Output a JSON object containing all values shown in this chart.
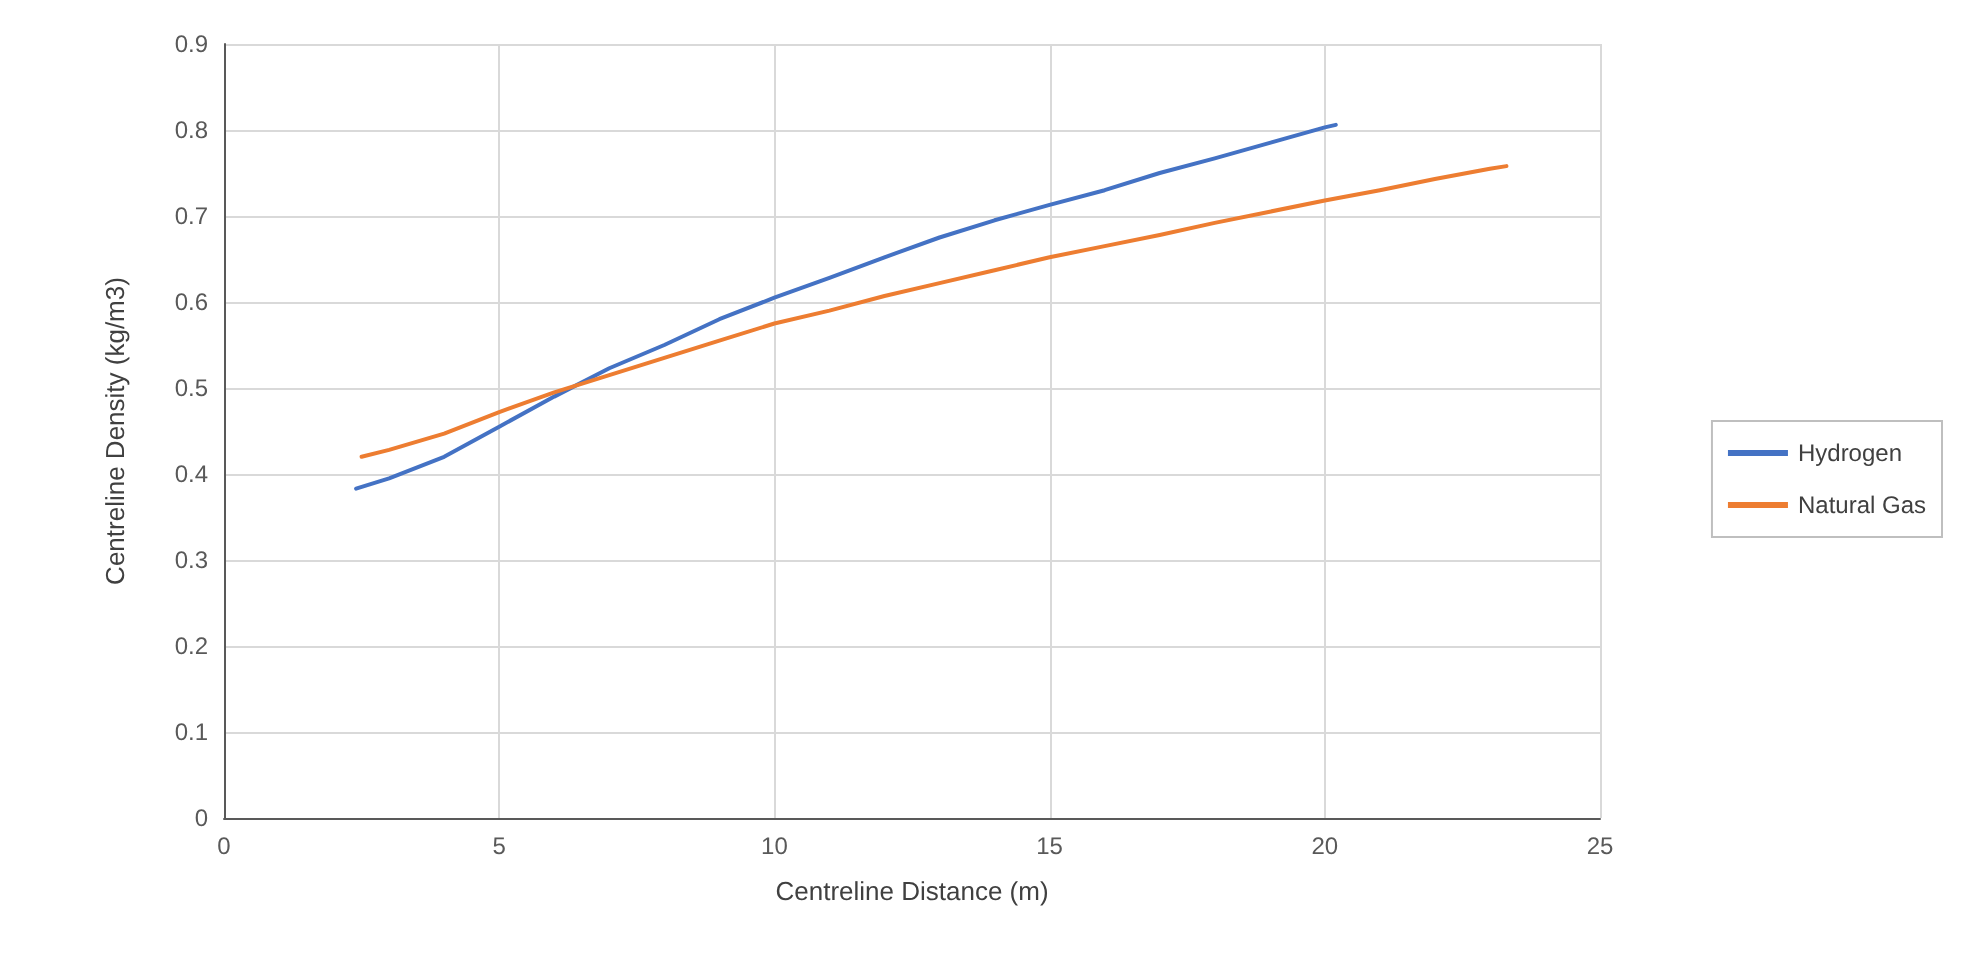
{
  "chart_data": {
    "type": "line",
    "xlabel": "Centreline Distance (m)",
    "ylabel": "Centreline Density (kg/m3)",
    "series": [
      {
        "name": "Hydrogen",
        "color": "#4472c4",
        "x": [
          2.4,
          3,
          4,
          5,
          6,
          7,
          8,
          9,
          10,
          11,
          12,
          13,
          14,
          15,
          16,
          17,
          18,
          19,
          20,
          20.2
        ],
        "values": [
          0.383,
          0.395,
          0.42,
          0.455,
          0.49,
          0.523,
          0.55,
          0.58,
          0.605,
          0.628,
          0.652,
          0.675,
          0.695,
          0.713,
          0.73,
          0.75,
          0.767,
          0.785,
          0.803,
          0.806
        ]
      },
      {
        "name": "Natural Gas",
        "color": "#ed7d31",
        "x": [
          2.5,
          3,
          4,
          5,
          6,
          7,
          8,
          9,
          10,
          11,
          12,
          13,
          14,
          15,
          16,
          17,
          18,
          19,
          20,
          21,
          22,
          23,
          23.3
        ],
        "values": [
          0.42,
          0.428,
          0.447,
          0.472,
          0.495,
          0.515,
          0.535,
          0.555,
          0.575,
          0.59,
          0.607,
          0.622,
          0.637,
          0.652,
          0.665,
          0.678,
          0.692,
          0.705,
          0.718,
          0.73,
          0.743,
          0.755,
          0.758
        ]
      }
    ],
    "xlim": [
      0,
      25
    ],
    "xticks": [
      0,
      5,
      10,
      15,
      20,
      25
    ],
    "ylim": [
      0,
      0.9
    ],
    "yticks": [
      0,
      0.1,
      0.2,
      0.3,
      0.4,
      0.5,
      0.6,
      0.7,
      0.8,
      0.9
    ],
    "grid": true,
    "legend": "right",
    "marker": "none",
    "line_style": "solid"
  }
}
